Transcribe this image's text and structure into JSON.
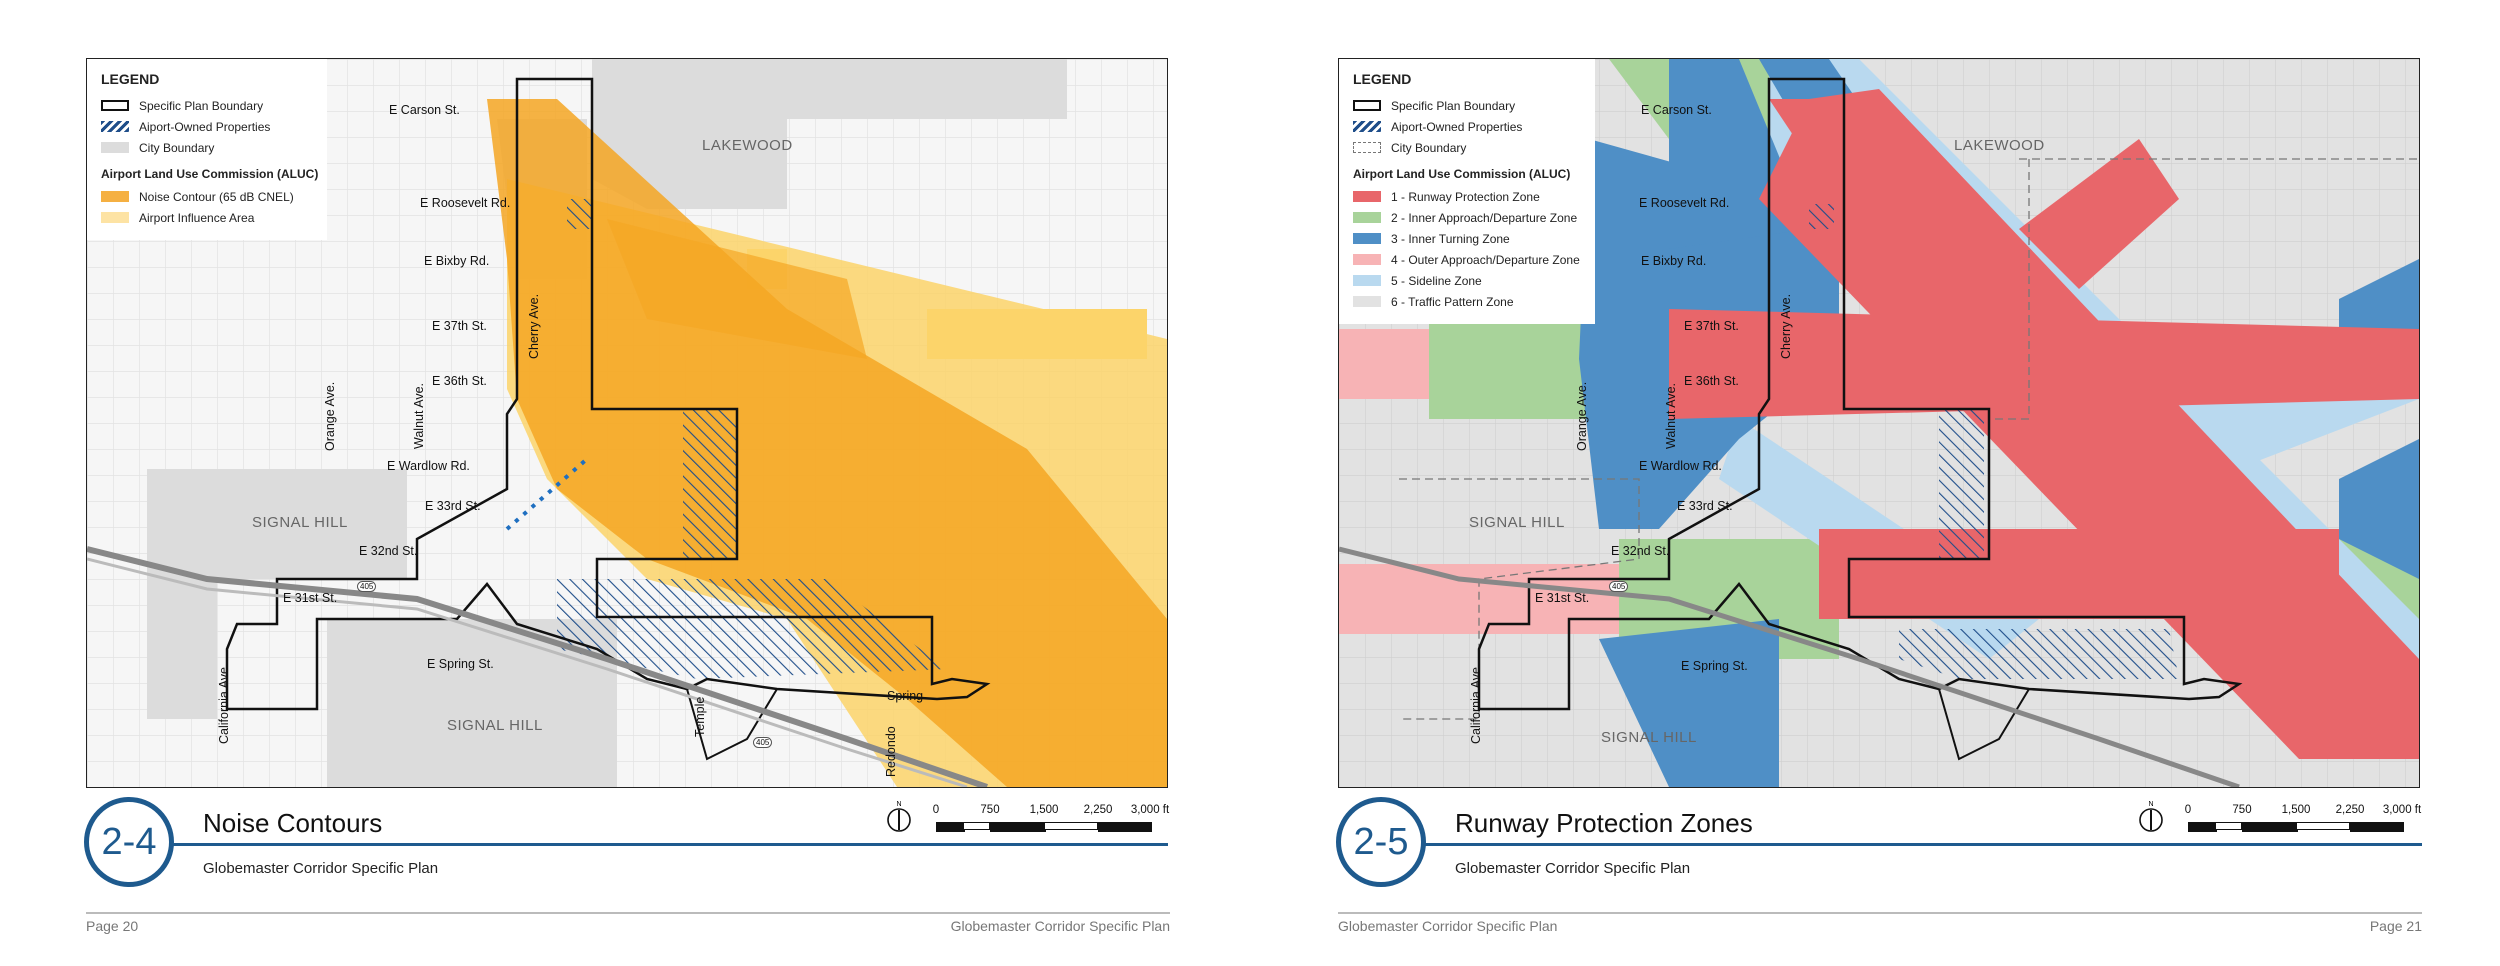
{
  "left": {
    "legend": {
      "title": "LEGEND",
      "items": [
        "Specific Plan Boundary",
        "Aiport-Owned Properties",
        "City Boundary"
      ],
      "aluc_title": "Airport Land Use Commission (ALUC)",
      "aluc_items": [
        {
          "label": "Noise Contour (65 dB CNEL)",
          "color": "#f5b042"
        },
        {
          "label": "Airport Influence Area",
          "color": "#fde3a4"
        }
      ]
    },
    "streets": {
      "carson": "E Carson St.",
      "roosevelt": "E Roosevelt Rd.",
      "bixby": "E Bixby Rd.",
      "s37": "E 37th St.",
      "s36": "E 36th St.",
      "wardlow": "E Wardlow Rd.",
      "s33": "E 33rd St.",
      "s32": "E 32nd St.",
      "s31": "E 31st St.",
      "spring": "E Spring St.",
      "spring_short": "Spring",
      "cherry": "Cherry Ave.",
      "orange": "Orange Ave.",
      "walnut": "Walnut Ave.",
      "california": "California Ave.",
      "temple": "Temple",
      "redondo": "Redondo",
      "hwy1": "405",
      "hwy2": "405"
    },
    "areas": {
      "lakewood": "LAKEWOOD",
      "signal_hill_1": "SIGNAL HILL",
      "signal_hill_2": "SIGNAL HILL"
    },
    "figure": {
      "number": "2-4",
      "title": "Noise Contours",
      "subtitle": "Globemaster Corridor Specific Plan"
    },
    "scale": {
      "ticks": [
        "0",
        "750",
        "1,500",
        "2,250",
        "3,000 ft"
      ],
      "north": "N"
    },
    "footer": {
      "left": "Page 20",
      "right": "Globemaster Corridor Specific Plan"
    },
    "colors": {
      "noise": "#f5a623",
      "influence": "#fcd46a",
      "hatch": "#1f4e8a",
      "city": "#dcdcdc"
    }
  },
  "right": {
    "legend": {
      "title": "LEGEND",
      "items": [
        "Specific Plan Boundary",
        "Aiport-Owned Properties",
        "City Boundary"
      ],
      "aluc_title": "Airport Land Use Commission (ALUC)",
      "aluc_items": [
        {
          "label": "1 - Runway Protection Zone",
          "color": "#e8666a"
        },
        {
          "label": "2 - Inner Approach/Departure Zone",
          "color": "#a8d39a"
        },
        {
          "label": "3 - Inner Turning Zone",
          "color": "#4f8fc6"
        },
        {
          "label": "4 - Outer Approach/Departure Zone",
          "color": "#f7b3b5"
        },
        {
          "label": "5 - Sideline Zone",
          "color": "#b9d9ef"
        },
        {
          "label": "6 - Traffic Pattern Zone",
          "color": "#e2e2e2"
        }
      ]
    },
    "streets": {
      "carson": "E Carson St.",
      "roosevelt": "E Roosevelt Rd.",
      "bixby": "E Bixby Rd.",
      "s37": "E 37th St.",
      "s36": "E 36th St.",
      "wardlow": "E Wardlow Rd.",
      "s33": "E 33rd St.",
      "s32": "E 32nd St.",
      "s31": "E 31st St.",
      "spring": "E Spring St.",
      "cherry": "Cherry Ave.",
      "orange": "Orange Ave.",
      "walnut": "Walnut Ave.",
      "california": "California Ave.",
      "hwy1": "405"
    },
    "areas": {
      "lakewood": "LAKEWOOD",
      "signal_hill_1": "SIGNAL HILL",
      "signal_hill_2": "SIGNAL HILL"
    },
    "figure": {
      "number": "2-5",
      "title": "Runway Protection Zones",
      "subtitle": "Globemaster Corridor Specific Plan"
    },
    "scale": {
      "ticks": [
        "0",
        "750",
        "1,500",
        "2,250",
        "3,000 ft"
      ],
      "north": "N"
    },
    "footer": {
      "left": "Globemaster Corridor Specific Plan",
      "right": "Page 21"
    }
  }
}
